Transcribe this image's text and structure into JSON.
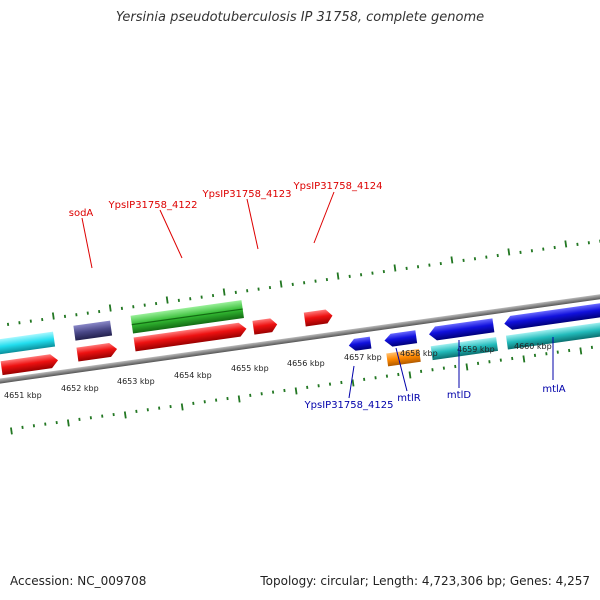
{
  "header": {
    "title": "Yersinia pseudotuberculosis IP 31758, complete genome"
  },
  "footer": {
    "accession": "Accession: NC_009708",
    "summary": "Topology: circular; Length: 4,723,306 bp; Genes: 4,257"
  },
  "scale": {
    "unit": "kbp",
    "ticks": [
      {
        "label": "4651 kbp"
      },
      {
        "label": "4652 kbp"
      },
      {
        "label": "4653 kbp"
      },
      {
        "label": "4654 kbp"
      },
      {
        "label": "4655 kbp"
      },
      {
        "label": "4656 kbp"
      },
      {
        "label": "4657 kbp"
      },
      {
        "label": "4658 kbp"
      },
      {
        "label": "4659 kbp"
      },
      {
        "label": "4660 kbp"
      }
    ]
  },
  "genes": {
    "forward": [
      {
        "label": "sodA",
        "color": "#dd0000"
      },
      {
        "label": "YpsIP31758_4122",
        "color": "#dd0000"
      },
      {
        "label": "YpsIP31758_4123",
        "color": "#dd0000"
      },
      {
        "label": "YpsIP31758_4124",
        "color": "#dd0000"
      }
    ],
    "reverse": [
      {
        "label": "YpsIP31758_4125",
        "color": "#0000aa"
      },
      {
        "label": "mtlR",
        "color": "#0000aa"
      },
      {
        "label": "mtlD",
        "color": "#0000aa"
      },
      {
        "label": "mtlA",
        "color": "#0000aa"
      }
    ]
  },
  "colors": {
    "cds_forward": "#ee1111",
    "cds_reverse": "#1111dd",
    "cog_cyan": "#22ddee",
    "cog_purple": "#4a4888",
    "cog_green": "#33bb33",
    "cog_orange": "#ff8800",
    "cog_teal": "#22bbbb",
    "backbone": "#888888",
    "tick": "#227722"
  }
}
